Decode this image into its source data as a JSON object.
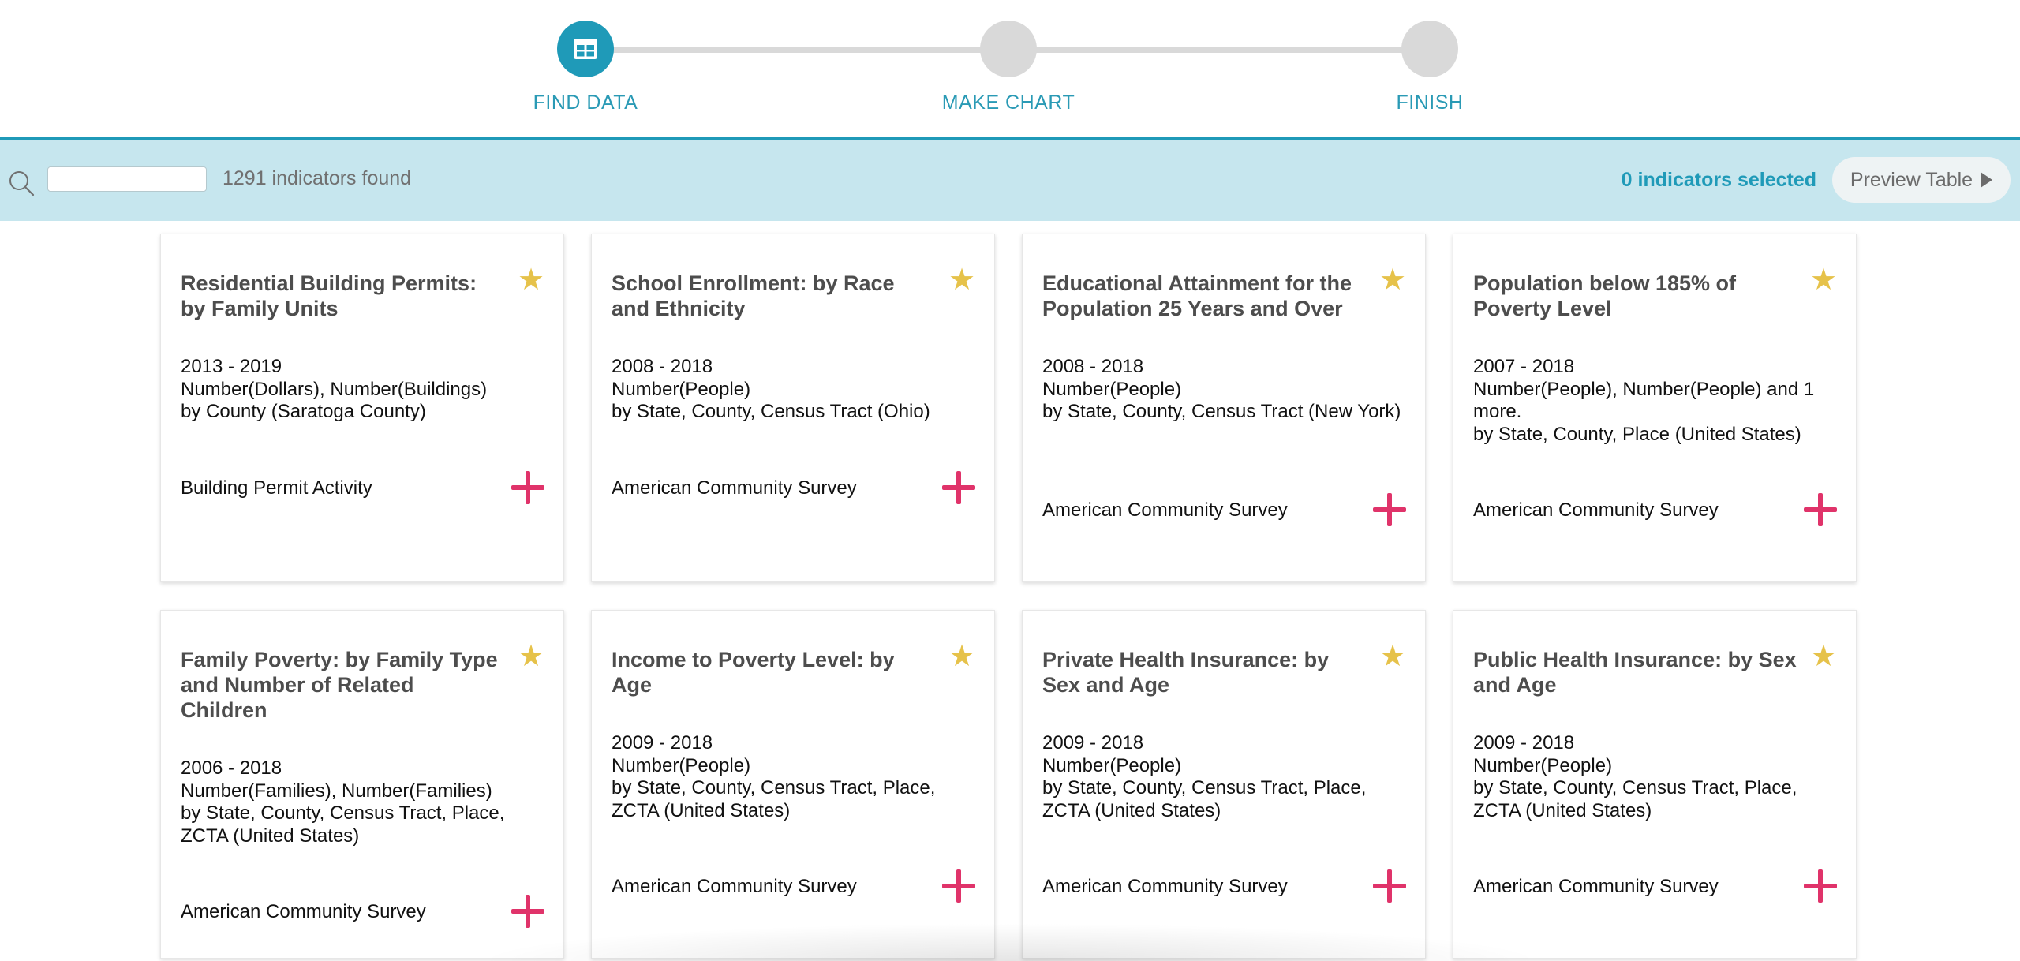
{
  "stepper": {
    "steps": [
      {
        "label": "FIND DATA",
        "active": true,
        "icon": "table-icon"
      },
      {
        "label": "MAKE CHART",
        "active": false
      },
      {
        "label": "FINISH",
        "active": false
      }
    ],
    "active_color": "#1f9ab8",
    "inactive_color": "#d9d9d9"
  },
  "search": {
    "value": "",
    "placeholder": "",
    "count_text": "1291 indicators found",
    "selected_text": "0 indicators selected",
    "preview_label": "Preview Table"
  },
  "cards": [
    {
      "title": "Residential Building Permits: by Family Units",
      "years": "2013 - 2019",
      "units": "Number(Dollars), Number(Buildings)",
      "geo": "by County (Saratoga County)",
      "source": "Building Permit Activity"
    },
    {
      "title": "School Enrollment: by Race and Ethnicity",
      "years": "2008 - 2018",
      "units": "Number(People)",
      "geo": "by State, County, Census Tract (Ohio)",
      "source": "American Community Survey"
    },
    {
      "title": "Educational Attainment for the Population 25 Years and Over",
      "years": "2008 - 2018",
      "units": "Number(People)",
      "geo": "by State, County, Census Tract (New York)",
      "source": "American Community Survey"
    },
    {
      "title": "Population below 185% of Poverty Level",
      "years": "2007 - 2018",
      "units": "Number(People), Number(People) and 1 more.",
      "geo": "by State, County, Place (United States)",
      "source": "American Community Survey"
    },
    {
      "title": "Family Poverty: by Family Type and Number of Related Children",
      "years": "2006 - 2018",
      "units": "Number(Families), Number(Families)",
      "geo": "by State, County, Census Tract, Place, ZCTA (United States)",
      "source": "American Community Survey"
    },
    {
      "title": "Income to Poverty Level: by Age",
      "years": "2009 - 2018",
      "units": "Number(People)",
      "geo": "by State, County, Census Tract, Place, ZCTA (United States)",
      "source": "American Community Survey"
    },
    {
      "title": "Private Health Insurance: by Sex and Age",
      "years": "2009 - 2018",
      "units": "Number(People)",
      "geo": "by State, County, Census Tract, Place, ZCTA (United States)",
      "source": "American Community Survey"
    },
    {
      "title": "Public Health Insurance: by Sex and Age",
      "years": "2009 - 2018",
      "units": "Number(People)",
      "geo": "by State, County, Census Tract, Place, ZCTA (United States)",
      "source": "American Community Survey"
    }
  ],
  "colors": {
    "search_bar_bg": "#c6e6ee",
    "star": "#e6c24a",
    "add": "#e0336a",
    "accent": "#1f9ab8"
  }
}
